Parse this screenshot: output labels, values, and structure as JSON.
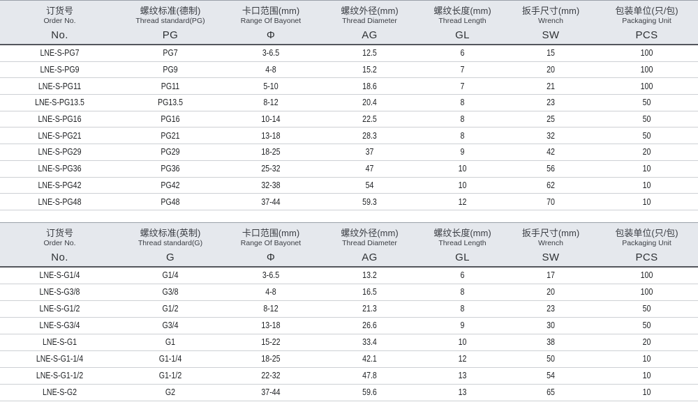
{
  "colors": {
    "header_bg": "#e5e8ed",
    "header_border_dark": "#53565c",
    "header_border_light": "#9aa0a8",
    "row_divider": "#cdd0d4",
    "data_text": "#212326",
    "header_text": "#3a3d43"
  },
  "tables": [
    {
      "name": "pg-thread-table",
      "columns": [
        {
          "zh": "订货号",
          "en": "Order No.",
          "code": "No."
        },
        {
          "zh": "螺纹标准(德制)",
          "en": "Thread standard(PG)",
          "code": "PG"
        },
        {
          "zh": "卡口范围(mm)",
          "en": "Range Of Bayonet",
          "code": "Φ"
        },
        {
          "zh": "螺纹外径(mm)",
          "en": "Thread Diameter",
          "code": "AG"
        },
        {
          "zh": "螺纹长度(mm)",
          "en": "Thread Length",
          "code": "GL"
        },
        {
          "zh": "扳手尺寸(mm)",
          "en": "Wrench",
          "code": "SW"
        },
        {
          "zh": "包装单位(只/包)",
          "en": "Packaging Unit",
          "code": "PCS"
        }
      ],
      "rows": [
        [
          "LNE-S-PG7",
          "PG7",
          "3-6.5",
          "12.5",
          "6",
          "15",
          "100"
        ],
        [
          "LNE-S-PG9",
          "PG9",
          "4-8",
          "15.2",
          "7",
          "20",
          "100"
        ],
        [
          "LNE-S-PG11",
          "PG11",
          "5-10",
          "18.6",
          "7",
          "21",
          "100"
        ],
        [
          "LNE-S-PG13.5",
          "PG13.5",
          "8-12",
          "20.4",
          "8",
          "23",
          "50"
        ],
        [
          "LNE-S-PG16",
          "PG16",
          "10-14",
          "22.5",
          "8",
          "25",
          "50"
        ],
        [
          "LNE-S-PG21",
          "PG21",
          "13-18",
          "28.3",
          "8",
          "32",
          "50"
        ],
        [
          "LNE-S-PG29",
          "PG29",
          "18-25",
          "37",
          "9",
          "42",
          "20"
        ],
        [
          "LNE-S-PG36",
          "PG36",
          "25-32",
          "47",
          "10",
          "56",
          "10"
        ],
        [
          "LNE-S-PG42",
          "PG42",
          "32-38",
          "54",
          "10",
          "62",
          "10"
        ],
        [
          "LNE-S-PG48",
          "PG48",
          "37-44",
          "59.3",
          "12",
          "70",
          "10"
        ]
      ]
    },
    {
      "name": "g-thread-table",
      "columns": [
        {
          "zh": "订货号",
          "en": "Order No.",
          "code": "No."
        },
        {
          "zh": "螺纹标准(英制)",
          "en": "Thread standard(G)",
          "code": "G"
        },
        {
          "zh": "卡口范围(mm)",
          "en": "Range Of Bayonet",
          "code": "Φ"
        },
        {
          "zh": "螺纹外径(mm)",
          "en": "Thread Diameter",
          "code": "AG"
        },
        {
          "zh": "螺纹长度(mm)",
          "en": "Thread Length",
          "code": "GL"
        },
        {
          "zh": "扳手尺寸(mm)",
          "en": "Wrench",
          "code": "SW"
        },
        {
          "zh": "包装单位(只/包)",
          "en": "Packaging Unit",
          "code": "PCS"
        }
      ],
      "rows": [
        [
          "LNE-S-G1/4",
          "G1/4",
          "3-6.5",
          "13.2",
          "6",
          "17",
          "100"
        ],
        [
          "LNE-S-G3/8",
          "G3/8",
          "4-8",
          "16.5",
          "8",
          "20",
          "100"
        ],
        [
          "LNE-S-G1/2",
          "G1/2",
          "8-12",
          "21.3",
          "8",
          "23",
          "50"
        ],
        [
          "LNE-S-G3/4",
          "G3/4",
          "13-18",
          "26.6",
          "9",
          "30",
          "50"
        ],
        [
          "LNE-S-G1",
          "G1",
          "15-22",
          "33.4",
          "10",
          "38",
          "20"
        ],
        [
          "LNE-S-G1-1/4",
          "G1-1/4",
          "18-25",
          "42.1",
          "12",
          "50",
          "10"
        ],
        [
          "LNE-S-G1-1/2",
          "G1-1/2",
          "22-32",
          "47.8",
          "13",
          "54",
          "10"
        ],
        [
          "LNE-S-G2",
          "G2",
          "37-44",
          "59.6",
          "13",
          "65",
          "10"
        ]
      ]
    }
  ]
}
